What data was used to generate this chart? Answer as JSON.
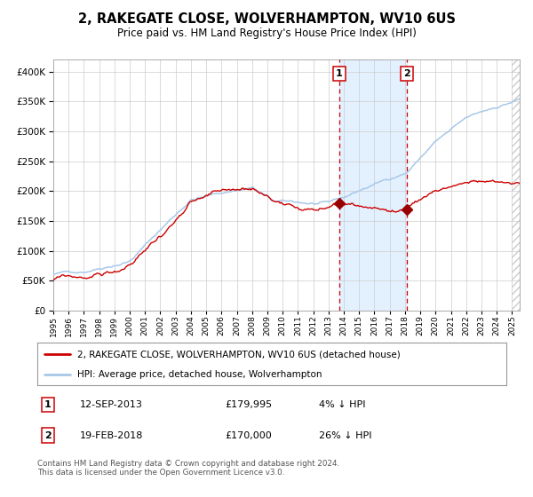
{
  "title": "2, RAKEGATE CLOSE, WOLVERHAMPTON, WV10 6US",
  "subtitle": "Price paid vs. HM Land Registry's House Price Index (HPI)",
  "legend_line1": "2, RAKEGATE CLOSE, WOLVERHAMPTON, WV10 6US (detached house)",
  "legend_line2": "HPI: Average price, detached house, Wolverhampton",
  "annotation1_label": "1",
  "annotation1_date": "12-SEP-2013",
  "annotation1_price": "£179,995",
  "annotation1_hpi": "4% ↓ HPI",
  "annotation2_label": "2",
  "annotation2_date": "19-FEB-2018",
  "annotation2_price": "£170,000",
  "annotation2_hpi": "26% ↓ HPI",
  "footer": "Contains HM Land Registry data © Crown copyright and database right 2024.\nThis data is licensed under the Open Government Licence v3.0.",
  "hpi_color": "#a8c8e8",
  "price_color": "#cc0000",
  "marker_color": "#990000",
  "vline_color": "#cc0000",
  "shade_color": "#ddeeff",
  "background_color": "#ffffff",
  "grid_color": "#cccccc",
  "ylim": [
    0,
    420000
  ],
  "xstart_year": 1995.0,
  "xend_year": 2025.5,
  "sale1_year": 2013.7,
  "sale2_year": 2018.12,
  "sale1_price": 179995,
  "sale2_price": 170000
}
